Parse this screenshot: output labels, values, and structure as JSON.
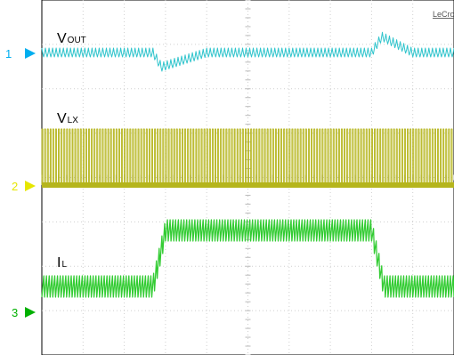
{
  "brand": "LeCroy",
  "chart_data": {
    "type": "line",
    "title": "",
    "grid": true,
    "grid_divisions": {
      "horizontal": 10,
      "vertical": 8
    },
    "series": [
      {
        "name": "VOUT",
        "label_main": "V",
        "label_sub": "OUT",
        "marker": "1",
        "color": "#2fc4cc",
        "description_points": [
          {
            "t": 0.0,
            "v": 0.0
          },
          {
            "t": 2.7,
            "v": 0.0
          },
          {
            "t": 2.9,
            "v": -0.9
          },
          {
            "t": 4.0,
            "v": 0.0
          },
          {
            "t": 8.0,
            "v": 0.0
          },
          {
            "t": 8.25,
            "v": 1.0
          },
          {
            "t": 9.0,
            "v": 0.0
          },
          {
            "t": 10.0,
            "v": 0.0
          }
        ]
      },
      {
        "name": "VLX",
        "label_main": "V",
        "label_sub": "LX",
        "marker": "2",
        "color": "#b5b51c",
        "description_points": [
          {
            "t": 0.0,
            "v": 0.0
          },
          {
            "t": 10.0,
            "v": 0.0
          }
        ]
      },
      {
        "name": "IL",
        "label_main": "I",
        "label_sub": "L",
        "marker": "3",
        "color": "#33cc33",
        "description_points": [
          {
            "t": 0.0,
            "v": 0.0
          },
          {
            "t": 2.7,
            "v": 0.0
          },
          {
            "t": 3.0,
            "v": 2.1
          },
          {
            "t": 8.0,
            "v": 2.1
          },
          {
            "t": 8.3,
            "v": 0.0
          },
          {
            "t": 10.0,
            "v": 0.0
          }
        ]
      }
    ]
  },
  "markers": {
    "ch1": {
      "text": "1",
      "color": "#00aeef"
    },
    "ch2": {
      "text": "2",
      "color": "#e6e600"
    },
    "ch3": {
      "text": "3",
      "color": "#00b000"
    }
  }
}
